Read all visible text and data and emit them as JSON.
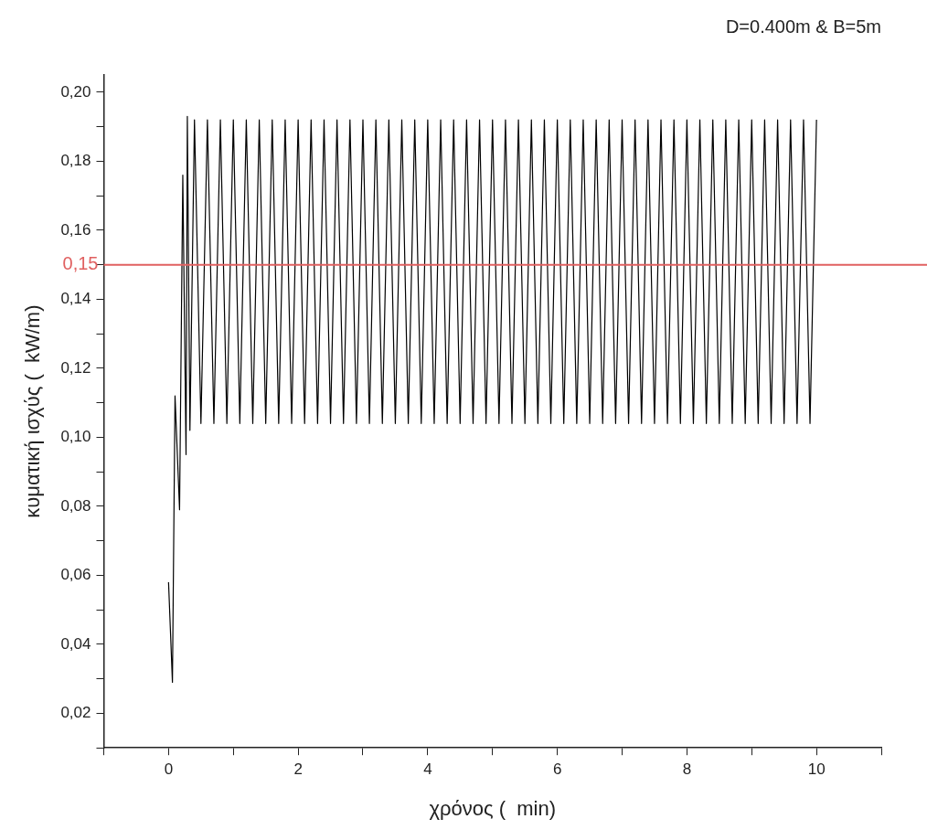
{
  "chart_data": {
    "type": "line",
    "title": "D=0.400m & B=5m",
    "xlabel": "χρόνος (  min)",
    "ylabel": "κυματική ισχύς (  kW/m)",
    "xlim": [
      -1,
      11
    ],
    "ylim": [
      0.01,
      0.205
    ],
    "xticks": [
      {
        "value": -1,
        "label": null
      },
      0,
      {
        "value": 1,
        "label": null
      },
      2,
      {
        "value": 3,
        "label": null
      },
      4,
      {
        "value": 5,
        "label": null
      },
      6,
      {
        "value": 7,
        "label": null
      },
      8,
      {
        "value": 9,
        "label": null
      },
      10,
      {
        "value": 11,
        "label": null
      }
    ],
    "yticks": [
      {
        "value": 0.01,
        "label": null
      },
      {
        "value": 0.02,
        "label": "0,02"
      },
      {
        "value": 0.03,
        "label": null
      },
      {
        "value": 0.04,
        "label": "0,04"
      },
      {
        "value": 0.05,
        "label": null
      },
      {
        "value": 0.06,
        "label": "0,06"
      },
      {
        "value": 0.07,
        "label": null
      },
      {
        "value": 0.08,
        "label": "0,08"
      },
      {
        "value": 0.09,
        "label": null
      },
      {
        "value": 0.1,
        "label": "0,10"
      },
      {
        "value": 0.11,
        "label": null
      },
      {
        "value": 0.12,
        "label": "0,12"
      },
      {
        "value": 0.13,
        "label": null
      },
      {
        "value": 0.14,
        "label": "0,14"
      },
      {
        "value": 0.15,
        "label": null
      },
      {
        "value": 0.16,
        "label": "0,16"
      },
      {
        "value": 0.17,
        "label": null
      },
      {
        "value": 0.18,
        "label": "0,18"
      },
      {
        "value": 0.19,
        "label": null
      },
      {
        "value": 0.2,
        "label": "0,20"
      }
    ],
    "grid": false,
    "legend": false,
    "marker": "none",
    "line_style": "solid",
    "ref_lines": [
      {
        "axis": "y",
        "value": 0.15,
        "label": "0,15",
        "color": "#e06060"
      }
    ],
    "series": [
      {
        "color": "#000000",
        "x": [
          0,
          0.06,
          0.1,
          0.17,
          0.22,
          0.27,
          0.29,
          0.33,
          0.4,
          0.5,
          0.6,
          0.7,
          0.8,
          0.9,
          1.0,
          1.1,
          1.2,
          1.3,
          1.4,
          1.5,
          1.6,
          1.7,
          1.8,
          1.9,
          2.0,
          2.1,
          2.2,
          2.3,
          2.4,
          2.5,
          2.6,
          2.7,
          2.8,
          2.9,
          3.0,
          3.1,
          3.2,
          3.3,
          3.4,
          3.5,
          3.6,
          3.7,
          3.8,
          3.9,
          4.0,
          4.1,
          4.2,
          4.3,
          4.4,
          4.5,
          4.6,
          4.7,
          4.8,
          4.9,
          5.0,
          5.1,
          5.2,
          5.3,
          5.4,
          5.5,
          5.6,
          5.7,
          5.8,
          5.9,
          6.0,
          6.1,
          6.2,
          6.3,
          6.4,
          6.5,
          6.6,
          6.7,
          6.8,
          6.9,
          7.0,
          7.1,
          7.2,
          7.3,
          7.4,
          7.5,
          7.6,
          7.7,
          7.8,
          7.9,
          8.0,
          8.1,
          8.2,
          8.3,
          8.4,
          8.5,
          8.6,
          8.7,
          8.8,
          8.9,
          9.0,
          9.1,
          9.2,
          9.3,
          9.4,
          9.5,
          9.6,
          9.7,
          9.8,
          9.9,
          10.0
        ],
        "values": [
          0.058,
          0.029,
          0.112,
          0.079,
          0.176,
          0.095,
          0.193,
          0.102,
          0.192,
          0.104,
          0.192,
          0.104,
          0.192,
          0.104,
          0.192,
          0.104,
          0.192,
          0.104,
          0.192,
          0.104,
          0.192,
          0.104,
          0.192,
          0.104,
          0.192,
          0.104,
          0.192,
          0.104,
          0.192,
          0.104,
          0.192,
          0.104,
          0.192,
          0.104,
          0.192,
          0.104,
          0.192,
          0.104,
          0.192,
          0.104,
          0.192,
          0.104,
          0.192,
          0.104,
          0.192,
          0.104,
          0.192,
          0.104,
          0.192,
          0.104,
          0.192,
          0.104,
          0.192,
          0.104,
          0.192,
          0.104,
          0.192,
          0.104,
          0.192,
          0.104,
          0.192,
          0.104,
          0.192,
          0.104,
          0.192,
          0.104,
          0.192,
          0.104,
          0.192,
          0.104,
          0.192,
          0.104,
          0.192,
          0.104,
          0.192,
          0.104,
          0.192,
          0.104,
          0.192,
          0.104,
          0.192,
          0.104,
          0.192,
          0.104,
          0.192,
          0.104,
          0.192,
          0.104,
          0.192,
          0.104,
          0.192,
          0.104,
          0.192,
          0.104,
          0.192,
          0.104,
          0.192,
          0.104,
          0.192,
          0.104,
          0.192,
          0.104,
          0.192,
          0.104,
          0.192
        ]
      }
    ]
  }
}
